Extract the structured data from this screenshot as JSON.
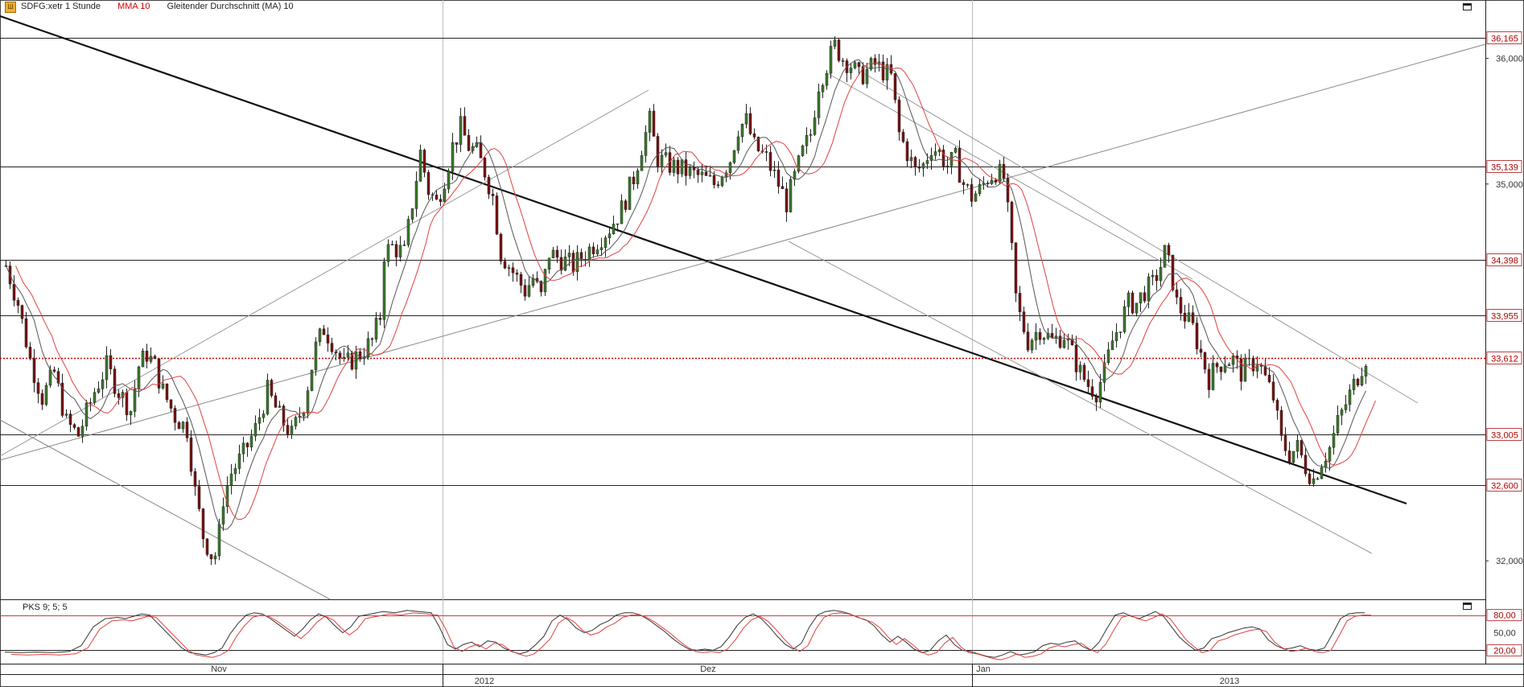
{
  "header": {
    "symbol_label": "SDFG:xetr 1 Stunde",
    "indicator1": "MMA 10",
    "indicator2": "Gleitender Durchschnitt (MA) 10"
  },
  "oscillator": {
    "label": "PKS 9; 5; 5"
  },
  "chart_data": {
    "type": "candlestick",
    "price_axis": {
      "ylim": [
        31.7,
        36.35
      ],
      "ticks": [
        {
          "value": 36.0,
          "label": "36,000"
        },
        {
          "value": 35.0,
          "label": "35,000"
        },
        {
          "value": 32.0,
          "label": "32,000"
        }
      ]
    },
    "levels": [
      {
        "value": 36.165,
        "label": "36,165",
        "style": "solid"
      },
      {
        "value": 35.139,
        "label": "35,139",
        "style": "solid"
      },
      {
        "value": 34.398,
        "label": "34,398",
        "style": "solid"
      },
      {
        "value": 33.955,
        "label": "33,955",
        "style": "solid"
      },
      {
        "value": 33.612,
        "label": "33,612",
        "style": "dotted-red"
      },
      {
        "value": 33.005,
        "label": "33,005",
        "style": "solid"
      },
      {
        "value": 32.6,
        "label": "32,600",
        "style": "solid"
      }
    ],
    "oscillator_axis": {
      "ylim": [
        0,
        100
      ],
      "ticks": [
        {
          "value": 80,
          "label": "80,00",
          "boxed": true
        },
        {
          "value": 50,
          "label": "50,00",
          "boxed": false
        },
        {
          "value": 20,
          "label": "20,00",
          "boxed": true
        }
      ]
    },
    "time_axis": {
      "months": [
        "Nov",
        "Dez",
        "Jan"
      ],
      "years": [
        "2012",
        "2013"
      ]
    },
    "price_path": [
      [
        0,
        34.35
      ],
      [
        15,
        34.05
      ],
      [
        30,
        33.6
      ],
      [
        45,
        33.3
      ],
      [
        60,
        33.5
      ],
      [
        75,
        33.1
      ],
      [
        90,
        33.0
      ],
      [
        110,
        33.35
      ],
      [
        125,
        33.55
      ],
      [
        140,
        33.35
      ],
      [
        155,
        33.2
      ],
      [
        165,
        33.55
      ],
      [
        175,
        33.65
      ],
      [
        185,
        33.55
      ],
      [
        195,
        33.35
      ],
      [
        210,
        33.15
      ],
      [
        225,
        33.05
      ],
      [
        235,
        32.55
      ],
      [
        245,
        32.2
      ],
      [
        255,
        32.05
      ],
      [
        262,
        32.05
      ],
      [
        270,
        32.5
      ],
      [
        280,
        32.7
      ],
      [
        295,
        32.85
      ],
      [
        310,
        33.05
      ],
      [
        325,
        33.35
      ],
      [
        340,
        33.15
      ],
      [
        355,
        33.0
      ],
      [
        370,
        33.25
      ],
      [
        385,
        33.7
      ],
      [
        395,
        33.85
      ],
      [
        405,
        33.75
      ],
      [
        420,
        33.55
      ],
      [
        440,
        33.65
      ],
      [
        455,
        33.75
      ],
      [
        465,
        33.95
      ],
      [
        470,
        34.45
      ],
      [
        480,
        34.5
      ],
      [
        495,
        34.45
      ],
      [
        505,
        34.85
      ],
      [
        515,
        35.25
      ],
      [
        525,
        34.95
      ],
      [
        535,
        34.85
      ],
      [
        545,
        35.05
      ],
      [
        555,
        35.3
      ],
      [
        565,
        35.45
      ],
      [
        575,
        35.3
      ],
      [
        585,
        35.25
      ],
      [
        595,
        35.1
      ],
      [
        605,
        34.9
      ],
      [
        615,
        34.45
      ],
      [
        625,
        34.35
      ],
      [
        635,
        34.25
      ],
      [
        645,
        34.15
      ],
      [
        655,
        34.25
      ],
      [
        665,
        34.1
      ],
      [
        675,
        34.45
      ],
      [
        690,
        34.4
      ],
      [
        705,
        34.35
      ],
      [
        720,
        34.45
      ],
      [
        735,
        34.55
      ],
      [
        750,
        34.65
      ],
      [
        765,
        34.8
      ],
      [
        780,
        35.05
      ],
      [
        790,
        35.3
      ],
      [
        800,
        35.5
      ],
      [
        810,
        35.2
      ],
      [
        825,
        35.15
      ],
      [
        845,
        35.1
      ],
      [
        865,
        35.05
      ],
      [
        880,
        35.0
      ],
      [
        900,
        35.2
      ],
      [
        910,
        35.45
      ],
      [
        920,
        35.5
      ],
      [
        930,
        35.3
      ],
      [
        945,
        35.2
      ],
      [
        960,
        35.0
      ],
      [
        970,
        34.85
      ],
      [
        980,
        35.05
      ],
      [
        990,
        35.25
      ],
      [
        1000,
        35.4
      ],
      [
        1010,
        35.8
      ],
      [
        1020,
        35.95
      ],
      [
        1030,
        36.1
      ],
      [
        1040,
        36.0
      ],
      [
        1050,
        35.95
      ],
      [
        1060,
        35.85
      ],
      [
        1070,
        35.9
      ],
      [
        1080,
        35.95
      ],
      [
        1090,
        35.9
      ],
      [
        1100,
        35.85
      ],
      [
        1110,
        35.4
      ],
      [
        1120,
        35.25
      ],
      [
        1130,
        35.1
      ],
      [
        1140,
        35.15
      ],
      [
        1150,
        35.3
      ],
      [
        1160,
        35.25
      ],
      [
        1170,
        35.15
      ],
      [
        1180,
        35.2
      ],
      [
        1190,
        35.0
      ],
      [
        1200,
        34.9
      ],
      [
        1210,
        34.95
      ],
      [
        1220,
        35.05
      ],
      [
        1230,
        35.1
      ],
      [
        1240,
        35.05
      ],
      [
        1248,
        34.6
      ],
      [
        1255,
        34.1
      ],
      [
        1260,
        33.95
      ],
      [
        1270,
        33.75
      ],
      [
        1285,
        33.85
      ],
      [
        1300,
        33.75
      ],
      [
        1315,
        33.8
      ],
      [
        1325,
        33.65
      ],
      [
        1335,
        33.5
      ],
      [
        1345,
        33.4
      ],
      [
        1355,
        33.35
      ],
      [
        1365,
        33.5
      ],
      [
        1375,
        33.75
      ],
      [
        1385,
        33.9
      ],
      [
        1395,
        34.05
      ],
      [
        1405,
        34.05
      ],
      [
        1415,
        34.15
      ],
      [
        1425,
        34.2
      ],
      [
        1435,
        34.35
      ],
      [
        1440,
        34.45
      ],
      [
        1448,
        34.3
      ],
      [
        1455,
        34.05
      ],
      [
        1465,
        33.95
      ],
      [
        1475,
        33.85
      ],
      [
        1485,
        33.65
      ],
      [
        1495,
        33.45
      ],
      [
        1505,
        33.55
      ],
      [
        1515,
        33.6
      ],
      [
        1525,
        33.6
      ],
      [
        1535,
        33.5
      ],
      [
        1545,
        33.55
      ],
      [
        1555,
        33.6
      ],
      [
        1565,
        33.45
      ],
      [
        1575,
        33.3
      ],
      [
        1585,
        32.95
      ],
      [
        1595,
        32.85
      ],
      [
        1605,
        32.9
      ],
      [
        1615,
        32.75
      ],
      [
        1625,
        32.65
      ],
      [
        1635,
        32.8
      ],
      [
        1645,
        32.9
      ],
      [
        1655,
        33.1
      ],
      [
        1665,
        33.25
      ],
      [
        1675,
        33.4
      ],
      [
        1685,
        33.55
      ],
      [
        1690,
        33.62
      ]
    ],
    "osc_path": [
      [
        0,
        17
      ],
      [
        20,
        16
      ],
      [
        40,
        17
      ],
      [
        60,
        16
      ],
      [
        80,
        18
      ],
      [
        95,
        28
      ],
      [
        110,
        60
      ],
      [
        125,
        74
      ],
      [
        140,
        76
      ],
      [
        150,
        74
      ],
      [
        160,
        78
      ],
      [
        170,
        82
      ],
      [
        180,
        80
      ],
      [
        190,
        66
      ],
      [
        200,
        52
      ],
      [
        210,
        38
      ],
      [
        220,
        24
      ],
      [
        230,
        16
      ],
      [
        240,
        14
      ],
      [
        250,
        12
      ],
      [
        260,
        16
      ],
      [
        270,
        24
      ],
      [
        280,
        48
      ],
      [
        290,
        66
      ],
      [
        300,
        80
      ],
      [
        310,
        84
      ],
      [
        320,
        82
      ],
      [
        330,
        74
      ],
      [
        340,
        64
      ],
      [
        350,
        54
      ],
      [
        360,
        44
      ],
      [
        370,
        56
      ],
      [
        380,
        72
      ],
      [
        390,
        82
      ],
      [
        400,
        76
      ],
      [
        410,
        62
      ],
      [
        420,
        50
      ],
      [
        430,
        60
      ],
      [
        440,
        78
      ],
      [
        455,
        82
      ],
      [
        470,
        86
      ],
      [
        485,
        84
      ],
      [
        500,
        88
      ],
      [
        515,
        86
      ],
      [
        530,
        84
      ],
      [
        540,
        60
      ],
      [
        550,
        30
      ],
      [
        560,
        22
      ],
      [
        570,
        30
      ],
      [
        580,
        34
      ],
      [
        590,
        26
      ],
      [
        600,
        36
      ],
      [
        610,
        34
      ],
      [
        620,
        24
      ],
      [
        630,
        18
      ],
      [
        640,
        14
      ],
      [
        650,
        18
      ],
      [
        660,
        30
      ],
      [
        670,
        44
      ],
      [
        680,
        70
      ],
      [
        690,
        80
      ],
      [
        700,
        72
      ],
      [
        710,
        58
      ],
      [
        720,
        50
      ],
      [
        730,
        54
      ],
      [
        740,
        64
      ],
      [
        750,
        70
      ],
      [
        760,
        80
      ],
      [
        770,
        84
      ],
      [
        780,
        84
      ],
      [
        790,
        80
      ],
      [
        800,
        72
      ],
      [
        810,
        62
      ],
      [
        820,
        52
      ],
      [
        830,
        40
      ],
      [
        840,
        30
      ],
      [
        850,
        22
      ],
      [
        860,
        20
      ],
      [
        870,
        22
      ],
      [
        880,
        20
      ],
      [
        890,
        26
      ],
      [
        900,
        42
      ],
      [
        910,
        62
      ],
      [
        920,
        76
      ],
      [
        930,
        82
      ],
      [
        940,
        74
      ],
      [
        950,
        60
      ],
      [
        960,
        44
      ],
      [
        970,
        30
      ],
      [
        980,
        22
      ],
      [
        990,
        32
      ],
      [
        1000,
        60
      ],
      [
        1010,
        80
      ],
      [
        1020,
        86
      ],
      [
        1030,
        88
      ],
      [
        1040,
        86
      ],
      [
        1050,
        82
      ],
      [
        1060,
        76
      ],
      [
        1070,
        72
      ],
      [
        1080,
        62
      ],
      [
        1090,
        46
      ],
      [
        1100,
        34
      ],
      [
        1110,
        44
      ],
      [
        1120,
        34
      ],
      [
        1130,
        22
      ],
      [
        1140,
        16
      ],
      [
        1150,
        20
      ],
      [
        1160,
        36
      ],
      [
        1170,
        46
      ],
      [
        1180,
        30
      ],
      [
        1190,
        20
      ],
      [
        1200,
        18
      ],
      [
        1210,
        14
      ],
      [
        1220,
        10
      ],
      [
        1230,
        8
      ],
      [
        1240,
        12
      ],
      [
        1250,
        18
      ],
      [
        1260,
        12
      ],
      [
        1270,
        14
      ],
      [
        1280,
        18
      ],
      [
        1290,
        28
      ],
      [
        1300,
        32
      ],
      [
        1310,
        30
      ],
      [
        1320,
        34
      ],
      [
        1330,
        36
      ],
      [
        1340,
        26
      ],
      [
        1350,
        20
      ],
      [
        1360,
        34
      ],
      [
        1370,
        58
      ],
      [
        1380,
        80
      ],
      [
        1390,
        84
      ],
      [
        1400,
        78
      ],
      [
        1410,
        74
      ],
      [
        1420,
        80
      ],
      [
        1430,
        86
      ],
      [
        1440,
        78
      ],
      [
        1450,
        60
      ],
      [
        1460,
        42
      ],
      [
        1470,
        30
      ],
      [
        1480,
        20
      ],
      [
        1490,
        24
      ],
      [
        1500,
        40
      ],
      [
        1510,
        44
      ],
      [
        1520,
        50
      ],
      [
        1530,
        54
      ],
      [
        1540,
        58
      ],
      [
        1550,
        60
      ],
      [
        1560,
        56
      ],
      [
        1570,
        38
      ],
      [
        1580,
        28
      ],
      [
        1590,
        22
      ],
      [
        1600,
        24
      ],
      [
        1610,
        28
      ],
      [
        1620,
        22
      ],
      [
        1630,
        20
      ],
      [
        1640,
        24
      ],
      [
        1650,
        48
      ],
      [
        1660,
        74
      ],
      [
        1670,
        82
      ],
      [
        1680,
        84
      ],
      [
        1690,
        84
      ]
    ]
  }
}
